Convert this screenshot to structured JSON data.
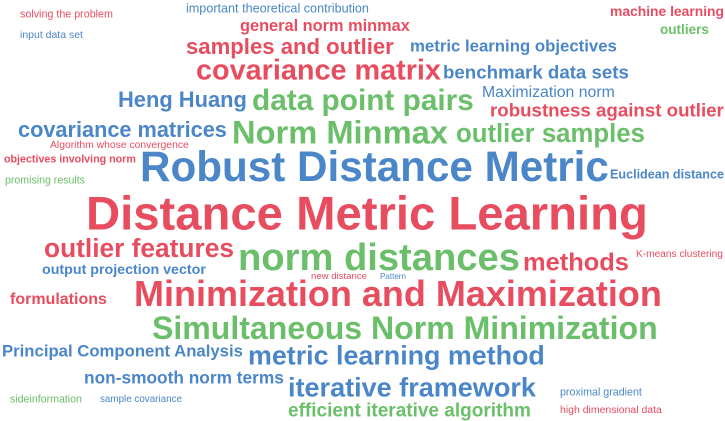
{
  "colors": {
    "blue": "#4a86c8",
    "red": "#e84c5f",
    "green": "#6cbf6a"
  },
  "words": [
    {
      "text": "important theoretical contribution",
      "color": "blue"
    },
    {
      "text": "general norm minmax",
      "color": "red"
    },
    {
      "text": "samples and outlier",
      "color": "red"
    },
    {
      "text": "metric learning objectives",
      "color": "blue"
    },
    {
      "text": "covariance matrix",
      "color": "red"
    },
    {
      "text": "benchmark data sets",
      "color": "blue"
    },
    {
      "text": "Maximization norm",
      "color": "blue"
    },
    {
      "text": "Heng Huang",
      "color": "blue"
    },
    {
      "text": "data point pairs",
      "color": "green"
    },
    {
      "text": "robustness against outlier",
      "color": "red"
    },
    {
      "text": "covariance matrices",
      "color": "blue"
    },
    {
      "text": "Norm Minmax",
      "color": "green"
    },
    {
      "text": "outlier samples",
      "color": "green"
    },
    {
      "text": "Algorithm whose convergence",
      "color": "red"
    },
    {
      "text": "objectives involving norm",
      "color": "red"
    },
    {
      "text": "solving the problem",
      "color": "red"
    },
    {
      "text": "Robust Distance Metric",
      "color": "blue"
    },
    {
      "text": "formulations",
      "color": "red"
    },
    {
      "text": "input data set",
      "color": "blue"
    },
    {
      "text": "promising results",
      "color": "green"
    },
    {
      "text": "Euclidean distance",
      "color": "blue"
    },
    {
      "text": "K-means clustering",
      "color": "red"
    },
    {
      "text": "Distance Metric Learning",
      "color": "red"
    },
    {
      "text": "sideinformation",
      "color": "green"
    },
    {
      "text": "outliers",
      "color": "green"
    },
    {
      "text": "machine learning",
      "color": "red"
    },
    {
      "text": "outlier features",
      "color": "red"
    },
    {
      "text": "norm distances",
      "color": "green"
    },
    {
      "text": "methods",
      "color": "red"
    },
    {
      "text": "output projection vector",
      "color": "blue"
    },
    {
      "text": "new distance",
      "color": "red"
    },
    {
      "text": "Pattern",
      "color": "blue"
    },
    {
      "text": "Minimization and Maximization",
      "color": "red"
    },
    {
      "text": "sample covariance",
      "color": "blue"
    },
    {
      "text": "Simultaneous Norm Minimization",
      "color": "green"
    },
    {
      "text": "Principal Component Analysis",
      "color": "blue"
    },
    {
      "text": "metric learning method",
      "color": "blue"
    },
    {
      "text": "proximal gradient",
      "color": "blue"
    },
    {
      "text": "non-smooth norm terms",
      "color": "blue"
    },
    {
      "text": "high dimensional data",
      "color": "red"
    },
    {
      "text": "iterative framework",
      "color": "blue"
    },
    {
      "text": "efficient iterative algorithm",
      "color": "green"
    }
  ]
}
